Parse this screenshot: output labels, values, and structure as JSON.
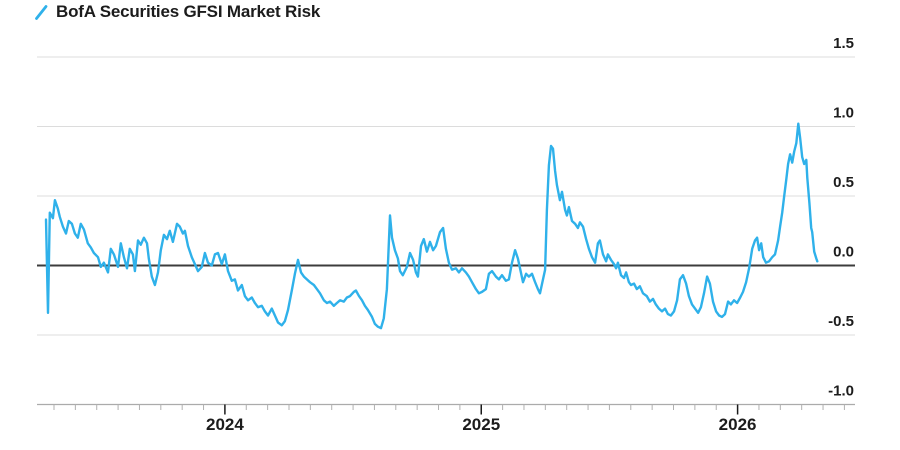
{
  "legend": {
    "label": "BofA Securities GFSI Market Risk"
  },
  "colors": {
    "series": "#2fb1ea",
    "grid": "#dcdcdc",
    "zero_line": "#3c3c3c",
    "axis_line": "#ababab",
    "minor_tick": "#b0b0b0",
    "year_tick": "#1a1a1a",
    "text": "#1c1c1c",
    "background": "#ffffff"
  },
  "chart_data": {
    "type": "line",
    "title": "BofA Securities GFSI Market Risk",
    "legend_position": "top-left",
    "grid": "horizontal",
    "x_axis": {
      "range": [
        2023.267,
        2026.458
      ],
      "tick_years": [
        2024,
        2025,
        2026
      ],
      "tick_labels": [
        "2024",
        "2025",
        "2026"
      ],
      "minor_ticks": "monthly"
    },
    "y_axis": {
      "side": "right",
      "range": [
        -1.0,
        1.5
      ],
      "tick_values": [
        1.5,
        1.0,
        0.5,
        0.0,
        -0.5,
        -1.0
      ],
      "tick_labels": [
        "1.5",
        "1.0",
        "0.5",
        "0.0",
        "-0.5",
        "-1.0"
      ],
      "zero_baseline": true
    },
    "series": [
      {
        "name": "BofA Securities GFSI Market Risk",
        "color": "#2fb1ea",
        "points": [
          [
            2023.302,
            0.33
          ],
          [
            2023.31,
            -0.34
          ],
          [
            2023.317,
            0.38
          ],
          [
            2023.329,
            0.34
          ],
          [
            2023.337,
            0.47
          ],
          [
            2023.348,
            0.41
          ],
          [
            2023.356,
            0.35
          ],
          [
            2023.368,
            0.28
          ],
          [
            2023.38,
            0.23
          ],
          [
            2023.391,
            0.32
          ],
          [
            2023.403,
            0.3
          ],
          [
            2023.415,
            0.23
          ],
          [
            2023.426,
            0.2
          ],
          [
            2023.438,
            0.3
          ],
          [
            2023.45,
            0.26
          ],
          [
            2023.465,
            0.16
          ],
          [
            2023.477,
            0.13
          ],
          [
            2023.489,
            0.09
          ],
          [
            2023.505,
            0.06
          ],
          [
            2023.516,
            -0.01
          ],
          [
            2023.528,
            0.02
          ],
          [
            2023.544,
            -0.05
          ],
          [
            2023.555,
            0.12
          ],
          [
            2023.567,
            0.08
          ],
          [
            2023.583,
            -0.01
          ],
          [
            2023.594,
            0.16
          ],
          [
            2023.606,
            0.06
          ],
          [
            2023.618,
            -0.02
          ],
          [
            2023.629,
            0.12
          ],
          [
            2023.641,
            0.08
          ],
          [
            2023.649,
            -0.04
          ],
          [
            2023.661,
            0.18
          ],
          [
            2023.672,
            0.15
          ],
          [
            2023.684,
            0.2
          ],
          [
            2023.696,
            0.16
          ],
          [
            2023.703,
            0.05
          ],
          [
            2023.715,
            -0.08
          ],
          [
            2023.727,
            -0.14
          ],
          [
            2023.739,
            -0.05
          ],
          [
            2023.75,
            0.11
          ],
          [
            2023.762,
            0.22
          ],
          [
            2023.774,
            0.19
          ],
          [
            2023.785,
            0.25
          ],
          [
            2023.797,
            0.17
          ],
          [
            2023.813,
            0.3
          ],
          [
            2023.824,
            0.28
          ],
          [
            2023.836,
            0.23
          ],
          [
            2023.844,
            0.25
          ],
          [
            2023.856,
            0.14
          ],
          [
            2023.871,
            0.06
          ],
          [
            2023.883,
            0.01
          ],
          [
            2023.895,
            -0.04
          ],
          [
            2023.91,
            -0.01
          ],
          [
            2023.922,
            0.09
          ],
          [
            2023.934,
            0.02
          ],
          [
            2023.949,
            0.0
          ],
          [
            2023.961,
            0.08
          ],
          [
            2023.973,
            0.09
          ],
          [
            2023.988,
            0.01
          ],
          [
            2024.0,
            0.08
          ],
          [
            2024.012,
            -0.04
          ],
          [
            2024.027,
            -0.11
          ],
          [
            2024.039,
            -0.1
          ],
          [
            2024.051,
            -0.18
          ],
          [
            2024.066,
            -0.14
          ],
          [
            2024.078,
            -0.22
          ],
          [
            2024.09,
            -0.25
          ],
          [
            2024.105,
            -0.23
          ],
          [
            2024.117,
            -0.27
          ],
          [
            2024.129,
            -0.3
          ],
          [
            2024.144,
            -0.29
          ],
          [
            2024.156,
            -0.33
          ],
          [
            2024.168,
            -0.36
          ],
          [
            2024.183,
            -0.31
          ],
          [
            2024.195,
            -0.36
          ],
          [
            2024.207,
            -0.41
          ],
          [
            2024.222,
            -0.43
          ],
          [
            2024.234,
            -0.4
          ],
          [
            2024.246,
            -0.32
          ],
          [
            2024.261,
            -0.18
          ],
          [
            2024.273,
            -0.06
          ],
          [
            2024.285,
            0.04
          ],
          [
            2024.297,
            -0.05
          ],
          [
            2024.308,
            -0.08
          ],
          [
            2024.32,
            -0.1
          ],
          [
            2024.332,
            -0.12
          ],
          [
            2024.347,
            -0.14
          ],
          [
            2024.359,
            -0.17
          ],
          [
            2024.371,
            -0.2
          ],
          [
            2024.386,
            -0.25
          ],
          [
            2024.398,
            -0.27
          ],
          [
            2024.41,
            -0.26
          ],
          [
            2024.425,
            -0.29
          ],
          [
            2024.437,
            -0.27
          ],
          [
            2024.449,
            -0.25
          ],
          [
            2024.464,
            -0.26
          ],
          [
            2024.476,
            -0.23
          ],
          [
            2024.488,
            -0.22
          ],
          [
            2024.503,
            -0.19
          ],
          [
            2024.511,
            -0.18
          ],
          [
            2024.523,
            -0.22
          ],
          [
            2024.535,
            -0.25
          ],
          [
            2024.546,
            -0.29
          ],
          [
            2024.558,
            -0.32
          ],
          [
            2024.574,
            -0.37
          ],
          [
            2024.585,
            -0.42
          ],
          [
            2024.597,
            -0.44
          ],
          [
            2024.609,
            -0.45
          ],
          [
            2024.62,
            -0.38
          ],
          [
            2024.632,
            -0.17
          ],
          [
            2024.644,
            0.36
          ],
          [
            2024.652,
            0.2
          ],
          [
            2024.663,
            0.11
          ],
          [
            2024.675,
            0.05
          ],
          [
            2024.683,
            -0.04
          ],
          [
            2024.694,
            -0.07
          ],
          [
            2024.71,
            -0.01
          ],
          [
            2024.722,
            0.09
          ],
          [
            2024.734,
            0.04
          ],
          [
            2024.745,
            -0.05
          ],
          [
            2024.753,
            -0.08
          ],
          [
            2024.765,
            0.14
          ],
          [
            2024.776,
            0.19
          ],
          [
            2024.788,
            0.1
          ],
          [
            2024.8,
            0.17
          ],
          [
            2024.812,
            0.11
          ],
          [
            2024.823,
            0.14
          ],
          [
            2024.839,
            0.24
          ],
          [
            2024.851,
            0.27
          ],
          [
            2024.862,
            0.12
          ],
          [
            2024.874,
            0.02
          ],
          [
            2024.886,
            -0.03
          ],
          [
            2024.901,
            -0.02
          ],
          [
            2024.913,
            -0.05
          ],
          [
            2024.925,
            -0.02
          ],
          [
            2024.94,
            -0.05
          ],
          [
            2024.952,
            -0.08
          ],
          [
            2024.964,
            -0.12
          ],
          [
            2024.979,
            -0.17
          ],
          [
            2024.991,
            -0.2
          ],
          [
            2025.003,
            -0.19
          ],
          [
            2025.018,
            -0.17
          ],
          [
            2025.03,
            -0.06
          ],
          [
            2025.042,
            -0.04
          ],
          [
            2025.057,
            -0.08
          ],
          [
            2025.069,
            -0.1
          ],
          [
            2025.081,
            -0.07
          ],
          [
            2025.096,
            -0.11
          ],
          [
            2025.108,
            -0.1
          ],
          [
            2025.12,
            0.02
          ],
          [
            2025.132,
            0.11
          ],
          [
            2025.143,
            0.05
          ],
          [
            2025.151,
            -0.02
          ],
          [
            2025.163,
            -0.12
          ],
          [
            2025.175,
            -0.06
          ],
          [
            2025.186,
            -0.08
          ],
          [
            2025.198,
            -0.06
          ],
          [
            2025.21,
            -0.12
          ],
          [
            2025.221,
            -0.17
          ],
          [
            2025.229,
            -0.2
          ],
          [
            2025.241,
            -0.1
          ],
          [
            2025.249,
            -0.03
          ],
          [
            2025.256,
            0.4
          ],
          [
            2025.264,
            0.72
          ],
          [
            2025.272,
            0.86
          ],
          [
            2025.28,
            0.84
          ],
          [
            2025.288,
            0.68
          ],
          [
            2025.295,
            0.58
          ],
          [
            2025.307,
            0.47
          ],
          [
            2025.315,
            0.53
          ],
          [
            2025.327,
            0.4
          ],
          [
            2025.334,
            0.36
          ],
          [
            2025.342,
            0.42
          ],
          [
            2025.354,
            0.32
          ],
          [
            2025.366,
            0.3
          ],
          [
            2025.377,
            0.27
          ],
          [
            2025.385,
            0.31
          ],
          [
            2025.397,
            0.28
          ],
          [
            2025.409,
            0.19
          ],
          [
            2025.42,
            0.12
          ],
          [
            2025.432,
            0.06
          ],
          [
            2025.444,
            0.02
          ],
          [
            2025.455,
            0.16
          ],
          [
            2025.463,
            0.18
          ],
          [
            2025.475,
            0.08
          ],
          [
            2025.487,
            0.03
          ],
          [
            2025.494,
            0.08
          ],
          [
            2025.506,
            0.04
          ],
          [
            2025.518,
            0.01
          ],
          [
            2025.526,
            -0.02
          ],
          [
            2025.533,
            0.02
          ],
          [
            2025.545,
            -0.07
          ],
          [
            2025.557,
            -0.09
          ],
          [
            2025.565,
            -0.05
          ],
          [
            2025.576,
            -0.12
          ],
          [
            2025.584,
            -0.14
          ],
          [
            2025.596,
            -0.13
          ],
          [
            2025.607,
            -0.17
          ],
          [
            2025.619,
            -0.15
          ],
          [
            2025.631,
            -0.2
          ],
          [
            2025.646,
            -0.22
          ],
          [
            2025.658,
            -0.26
          ],
          [
            2025.67,
            -0.24
          ],
          [
            2025.681,
            -0.28
          ],
          [
            2025.693,
            -0.31
          ],
          [
            2025.705,
            -0.33
          ],
          [
            2025.717,
            -0.31
          ],
          [
            2025.728,
            -0.35
          ],
          [
            2025.74,
            -0.36
          ],
          [
            2025.752,
            -0.33
          ],
          [
            2025.764,
            -0.25
          ],
          [
            2025.775,
            -0.1
          ],
          [
            2025.787,
            -0.07
          ],
          [
            2025.799,
            -0.13
          ],
          [
            2025.81,
            -0.22
          ],
          [
            2025.822,
            -0.28
          ],
          [
            2025.834,
            -0.31
          ],
          [
            2025.846,
            -0.34
          ],
          [
            2025.857,
            -0.3
          ],
          [
            2025.869,
            -0.2
          ],
          [
            2025.881,
            -0.08
          ],
          [
            2025.892,
            -0.13
          ],
          [
            2025.904,
            -0.26
          ],
          [
            2025.916,
            -0.33
          ],
          [
            2025.928,
            -0.36
          ],
          [
            2025.939,
            -0.37
          ],
          [
            2025.951,
            -0.35
          ],
          [
            2025.963,
            -0.26
          ],
          [
            2025.974,
            -0.28
          ],
          [
            2025.986,
            -0.25
          ],
          [
            2025.998,
            -0.27
          ],
          [
            2026.01,
            -0.23
          ],
          [
            2026.021,
            -0.19
          ],
          [
            2026.033,
            -0.12
          ],
          [
            2026.045,
            -0.02
          ],
          [
            2026.057,
            0.12
          ],
          [
            2026.068,
            0.18
          ],
          [
            2026.076,
            0.2
          ],
          [
            2026.084,
            0.11
          ],
          [
            2026.092,
            0.16
          ],
          [
            2026.1,
            0.06
          ],
          [
            2026.111,
            0.02
          ],
          [
            2026.123,
            0.03
          ],
          [
            2026.135,
            0.06
          ],
          [
            2026.146,
            0.08
          ],
          [
            2026.158,
            0.18
          ],
          [
            2026.166,
            0.28
          ],
          [
            2026.174,
            0.38
          ],
          [
            2026.182,
            0.5
          ],
          [
            2026.19,
            0.62
          ],
          [
            2026.197,
            0.73
          ],
          [
            2026.205,
            0.8
          ],
          [
            2026.213,
            0.74
          ],
          [
            2026.221,
            0.82
          ],
          [
            2026.229,
            0.88
          ],
          [
            2026.237,
            1.02
          ],
          [
            2026.244,
            0.92
          ],
          [
            2026.252,
            0.78
          ],
          [
            2026.26,
            0.73
          ],
          [
            2026.268,
            0.76
          ],
          [
            2026.272,
            0.63
          ],
          [
            2026.28,
            0.45
          ],
          [
            2026.287,
            0.27
          ],
          [
            2026.291,
            0.24
          ],
          [
            2026.299,
            0.1
          ],
          [
            2026.307,
            0.05
          ],
          [
            2026.311,
            0.03
          ]
        ]
      }
    ]
  }
}
